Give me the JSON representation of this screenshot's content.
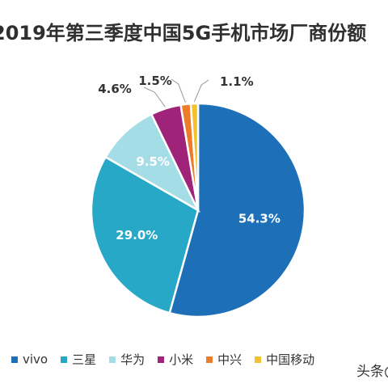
{
  "chart_data": {
    "type": "pie",
    "title": "2019年第三季度中国5G手机市场厂商份额",
    "categories": [
      "vivo",
      "三星",
      "华为",
      "小米",
      "中兴",
      "中国移动"
    ],
    "values": [
      54.3,
      29.0,
      9.5,
      4.6,
      1.5,
      1.1
    ],
    "value_labels": [
      "54.3%",
      "29.0%",
      "9.5%",
      "4.6%",
      "1.5%",
      "1.1%"
    ],
    "colors": [
      "#1d6fb8",
      "#26a8c6",
      "#a5dde6",
      "#a0237a",
      "#ec7b2a",
      "#f2c12e"
    ],
    "legend_position": "bottom"
  },
  "watermark": "头条@"
}
